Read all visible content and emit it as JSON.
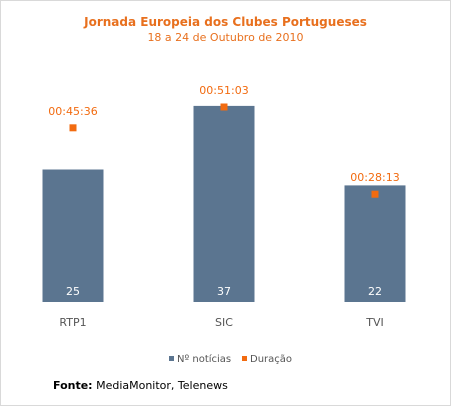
{
  "chart_data": {
    "type": "bar",
    "title": "Jornada Europeia dos Clubes Portugueses",
    "subtitle": "18 a 24 de Outubro de 2010",
    "categories": [
      "RTP1",
      "SIC",
      "TVI"
    ],
    "series": [
      {
        "name": "Nº notícias",
        "type": "bar",
        "color": "#5b7590",
        "values": [
          25,
          37,
          22
        ],
        "labels": [
          "25",
          "37",
          "22"
        ]
      },
      {
        "name": "Duração",
        "type": "marker",
        "color": "#f26b10",
        "values": [
          "00:45:36",
          "00:51:03",
          "00:28:13"
        ],
        "labels": [
          "00:45:36",
          "00:51:03",
          "00:28:13"
        ]
      }
    ],
    "legend_position": "bottom",
    "grid": false,
    "colors": {
      "title": "#e8701e",
      "axis_text": "#555555",
      "bar_label": "#ffffff"
    }
  },
  "source": {
    "label": "Fonte:",
    "text": "MediaMonitor, Telenews"
  }
}
